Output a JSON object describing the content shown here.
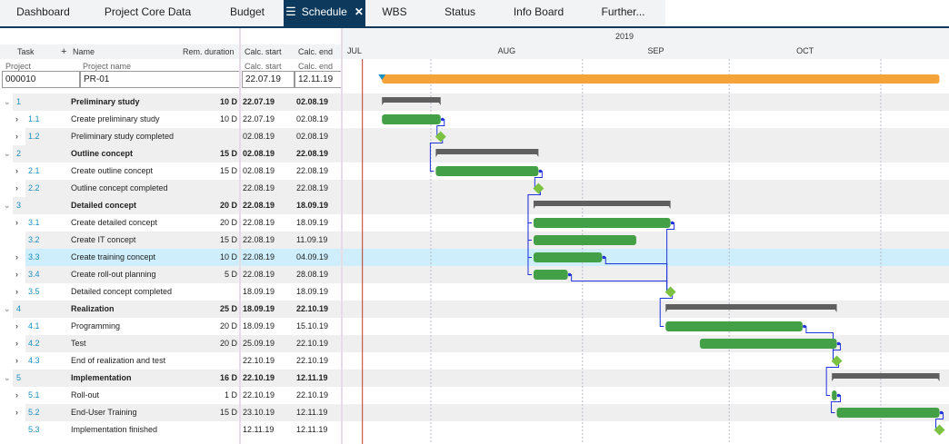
{
  "tabs": [
    {
      "label": "Dashboard"
    },
    {
      "label": "Project Core Data"
    },
    {
      "label": "Budget"
    },
    {
      "label": "Schedule",
      "active": true
    },
    {
      "label": "WBS"
    },
    {
      "label": "Status"
    },
    {
      "label": "Info Board"
    },
    {
      "label": "Further..."
    }
  ],
  "grid": {
    "headers": {
      "task": "Task",
      "add": "+",
      "name": "Name",
      "rem": "Rem. duration",
      "start": "Calc. start",
      "end": "Calc. end"
    },
    "subheaders": {
      "project": "Project",
      "project_name": "Project name",
      "start": "Calc. start",
      "end": "Calc. end"
    },
    "project": {
      "id": "000010",
      "name": "PR-01",
      "start": "22.07.19",
      "end": "12.11.19"
    },
    "rows": [
      {
        "id": "1",
        "name": "Preliminary study",
        "dur": "10 D",
        "start": "22.07.19",
        "end": "02.08.19",
        "type": "summary",
        "expand": "v"
      },
      {
        "id": "1.1",
        "name": "Create preliminary study",
        "dur": "10 D",
        "start": "22.07.19",
        "end": "02.08.19",
        "type": "task",
        "expand": ">"
      },
      {
        "id": "1.2",
        "name": "Preliminary study completed",
        "dur": "",
        "start": "02.08.19",
        "end": "02.08.19",
        "type": "milestone",
        "expand": ">"
      },
      {
        "id": "2",
        "name": "Outline concept",
        "dur": "15 D",
        "start": "02.08.19",
        "end": "22.08.19",
        "type": "summary",
        "expand": "v"
      },
      {
        "id": "2.1",
        "name": "Create outline concept",
        "dur": "15 D",
        "start": "02.08.19",
        "end": "22.08.19",
        "type": "task",
        "expand": ">"
      },
      {
        "id": "2.2",
        "name": "Outline concept completed",
        "dur": "",
        "start": "22.08.19",
        "end": "22.08.19",
        "type": "milestone",
        "expand": ">"
      },
      {
        "id": "3",
        "name": "Detailed concept",
        "dur": "20 D",
        "start": "22.08.19",
        "end": "18.09.19",
        "type": "summary",
        "expand": "v"
      },
      {
        "id": "3.1",
        "name": "Create detailed concept",
        "dur": "20 D",
        "start": "22.08.19",
        "end": "18.09.19",
        "type": "task",
        "expand": ">"
      },
      {
        "id": "3.2",
        "name": "Create IT concept",
        "dur": "15 D",
        "start": "22.08.19",
        "end": "11.09.19",
        "type": "task",
        "expand": ""
      },
      {
        "id": "3.3",
        "name": "Create training concept",
        "dur": "10 D",
        "start": "22.08.19",
        "end": "04.09.19",
        "type": "task",
        "expand": ">",
        "selected": true
      },
      {
        "id": "3.4",
        "name": "Create roll-out planning",
        "dur": "5 D",
        "start": "22.08.19",
        "end": "28.08.19",
        "type": "task",
        "expand": ">"
      },
      {
        "id": "3.5",
        "name": "Detailed concept completed",
        "dur": "",
        "start": "18.09.19",
        "end": "18.09.19",
        "type": "milestone",
        "expand": ">"
      },
      {
        "id": "4",
        "name": "Realization",
        "dur": "25 D",
        "start": "18.09.19",
        "end": "22.10.19",
        "type": "summary",
        "expand": "v"
      },
      {
        "id": "4.1",
        "name": "Programming",
        "dur": "20 D",
        "start": "18.09.19",
        "end": "15.10.19",
        "type": "task",
        "expand": ">"
      },
      {
        "id": "4.2",
        "name": "Test",
        "dur": "20 D",
        "start": "25.09.19",
        "end": "22.10.19",
        "type": "task",
        "expand": ">"
      },
      {
        "id": "4.3",
        "name": "End of realization and test",
        "dur": "",
        "start": "22.10.19",
        "end": "22.10.19",
        "type": "milestone",
        "expand": ">"
      },
      {
        "id": "5",
        "name": "Implementation",
        "dur": "16 D",
        "start": "22.10.19",
        "end": "12.11.19",
        "type": "summary",
        "expand": "v"
      },
      {
        "id": "5.1",
        "name": "Roll-out",
        "dur": "1 D",
        "start": "22.10.19",
        "end": "22.10.19",
        "type": "task",
        "expand": ">"
      },
      {
        "id": "5.2",
        "name": "End-User Training",
        "dur": "15 D",
        "start": "23.10.19",
        "end": "12.11.19",
        "type": "task",
        "expand": ">"
      },
      {
        "id": "5.3",
        "name": "Implementation finished",
        "dur": "",
        "start": "12.11.19",
        "end": "12.11.19",
        "type": "milestone",
        "expand": ""
      }
    ]
  },
  "gantt": {
    "year": "2019",
    "months": [
      "JUL",
      "AUG",
      "SEP",
      "OCT"
    ],
    "today": "18.07.19",
    "milestone_labels": {
      "1.2": "02.08.19",
      "2.2": "22.08.19",
      "3.5": "18.09.19",
      "4.3": "22.10.19"
    },
    "links": [
      [
        "1.1",
        "1.2"
      ],
      [
        "1.2",
        "2.1"
      ],
      [
        "2.1",
        "2.2"
      ],
      [
        "2.2",
        "3.1"
      ],
      [
        "2.2",
        "3.2"
      ],
      [
        "2.2",
        "3.3"
      ],
      [
        "2.2",
        "3.4"
      ],
      [
        "3.3",
        "3.5"
      ],
      [
        "3.4",
        "3.5"
      ],
      [
        "3.1",
        "3.5"
      ],
      [
        "3.5",
        "4.1"
      ],
      [
        "4.1",
        "4.3"
      ],
      [
        "4.2",
        "4.3"
      ],
      [
        "4.3",
        "5.1"
      ],
      [
        "5.1",
        "5.2"
      ],
      [
        "5.2",
        "5.3"
      ]
    ],
    "colors": {
      "project": "#f4a338",
      "task": "#43a047",
      "summary": "#5f5f5f",
      "milestone": "#7cc242",
      "link": "#2233dd",
      "today": "#c0392b",
      "selected": "#cdeefa",
      "alt": "#efefef"
    }
  }
}
